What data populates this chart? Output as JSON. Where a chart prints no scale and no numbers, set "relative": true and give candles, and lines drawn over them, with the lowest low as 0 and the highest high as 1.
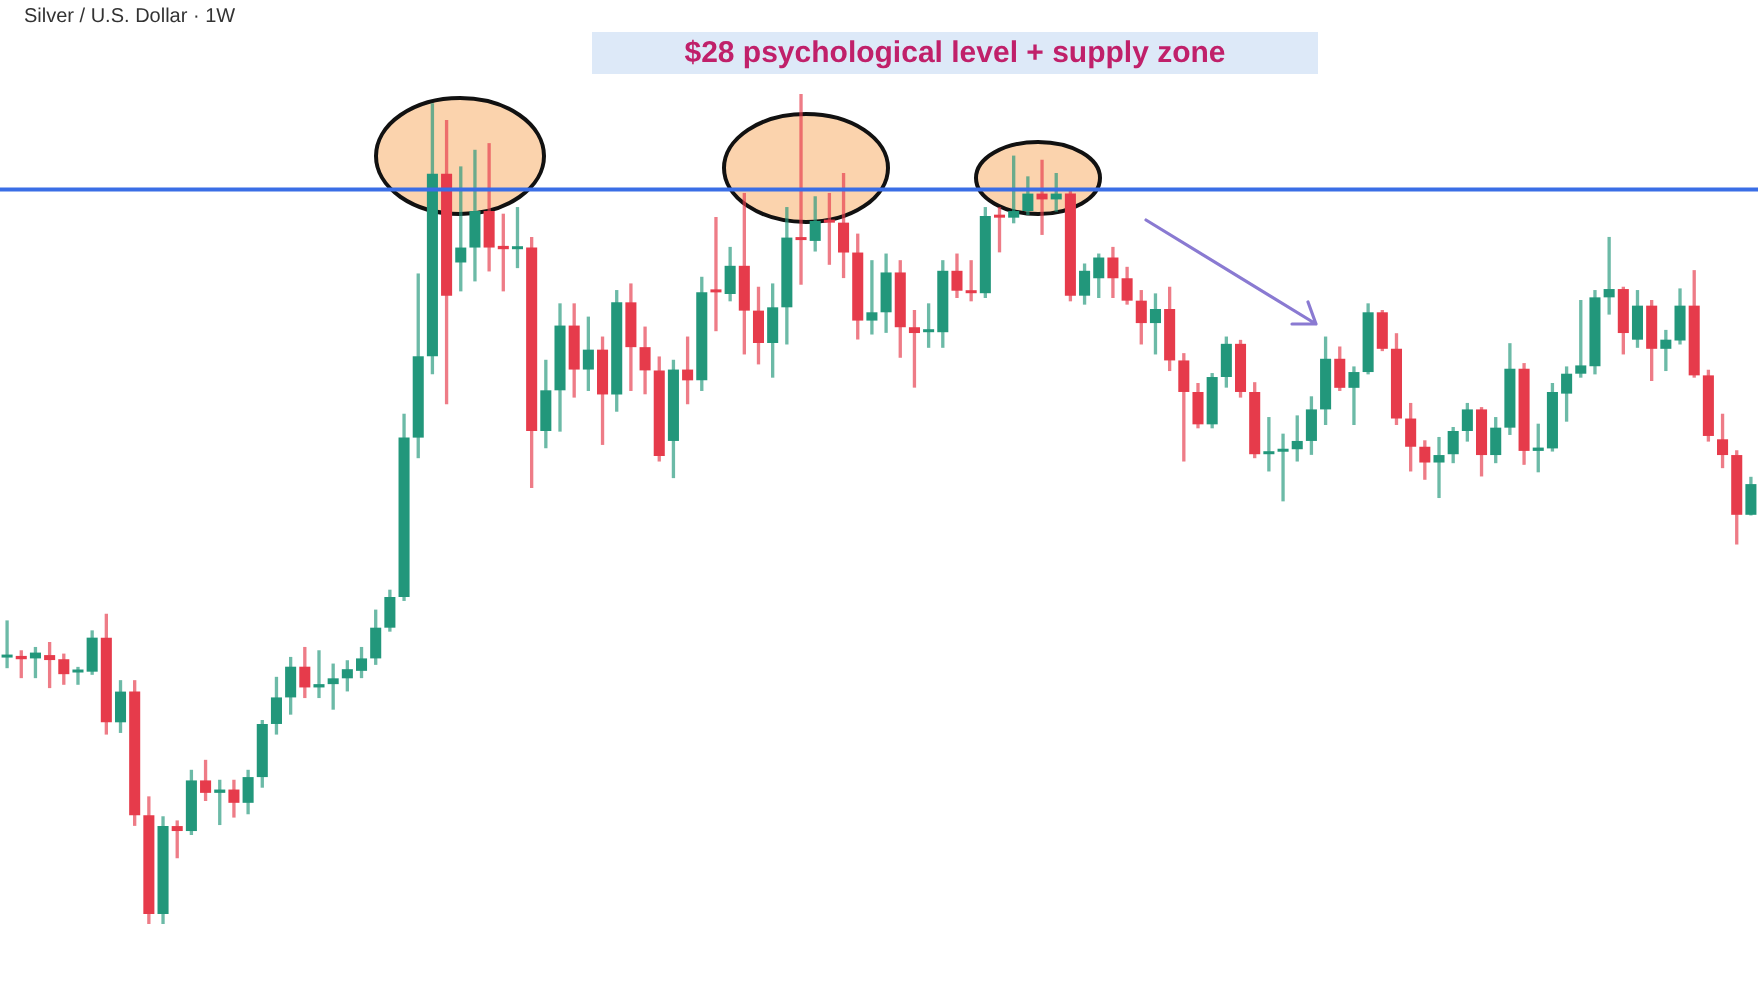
{
  "chart_data": {
    "type": "candlestick",
    "title": "$28 psychological level + supply zone",
    "subtitle": "Silver / U.S. Dollar · 1W",
    "relative": true,
    "categories": [
      null,
      null,
      null,
      null,
      null,
      null,
      null,
      null,
      null,
      null,
      null,
      null,
      null,
      null,
      null,
      null,
      null,
      null,
      null,
      null,
      null,
      null,
      null,
      null,
      null,
      null,
      null,
      null,
      null,
      null,
      null,
      null,
      null,
      null,
      null,
      null,
      null,
      null,
      null,
      null,
      null,
      null,
      null,
      null,
      null,
      null,
      null,
      null,
      null,
      null,
      null,
      null,
      null,
      null,
      null,
      null,
      null,
      null,
      null,
      null,
      null,
      null,
      null,
      null,
      null,
      null,
      null,
      null,
      null,
      null,
      null,
      null,
      null,
      null,
      null,
      null,
      null,
      null,
      null,
      null,
      null,
      null,
      null,
      null,
      null,
      null,
      null,
      null,
      null,
      null,
      null,
      null,
      null,
      null,
      null,
      null,
      null,
      null,
      null,
      null,
      null,
      null,
      null,
      null,
      null,
      null,
      null,
      null,
      null,
      null,
      null,
      null,
      null,
      null,
      null,
      null,
      null,
      null,
      null,
      null,
      null,
      null,
      null,
      null
    ],
    "ohlc": [
      [
        0.321,
        0.365,
        0.309,
        0.323
      ],
      [
        0.323,
        0.329,
        0.297,
        0.319
      ],
      [
        0.32,
        0.333,
        0.297,
        0.327
      ],
      [
        0.324,
        0.339,
        0.285,
        0.318
      ],
      [
        0.319,
        0.325,
        0.289,
        0.301
      ],
      [
        0.303,
        0.309,
        0.289,
        0.305
      ],
      [
        0.304,
        0.353,
        0.301,
        0.345
      ],
      [
        0.345,
        0.373,
        0.229,
        0.243
      ],
      [
        0.243,
        0.293,
        0.231,
        0.28
      ],
      [
        0.28,
        0.293,
        0.119,
        0.131
      ],
      [
        0.131,
        0.153,
        0,
        0.012
      ],
      [
        0.012,
        0.129,
        0,
        0.118
      ],
      [
        0.118,
        0.124,
        0.08,
        0.112
      ],
      [
        0.112,
        0.185,
        0.108,
        0.173
      ],
      [
        0.173,
        0.197,
        0.149,
        0.158
      ],
      [
        0.158,
        0.173,
        0.12,
        0.162
      ],
      [
        0.162,
        0.173,
        0.129,
        0.146
      ],
      [
        0.146,
        0.185,
        0.133,
        0.177
      ],
      [
        0.177,
        0.245,
        0.165,
        0.241
      ],
      [
        0.241,
        0.297,
        0.229,
        0.273
      ],
      [
        0.273,
        0.321,
        0.253,
        0.31
      ],
      [
        0.31,
        0.333,
        0.273,
        0.285
      ],
      [
        0.285,
        0.329,
        0.273,
        0.289
      ],
      [
        0.289,
        0.313,
        0.259,
        0.296
      ],
      [
        0.296,
        0.317,
        0.281,
        0.307
      ],
      [
        0.305,
        0.333,
        0.297,
        0.32
      ],
      [
        0.32,
        0.378,
        0.313,
        0.357
      ],
      [
        0.357,
        0.402,
        0.353,
        0.394
      ],
      [
        0.394,
        0.614,
        0.39,
        0.586
      ],
      [
        0.586,
        0.783,
        0.562,
        0.684
      ],
      [
        0.684,
        0.988,
        0.663,
        0.904
      ],
      [
        0.904,
        0.968,
        0.627,
        0.757
      ],
      [
        0.797,
        0.912,
        0.763,
        0.815
      ],
      [
        0.815,
        0.932,
        0.775,
        0.859
      ],
      [
        0.859,
        0.94,
        0.787,
        0.815
      ],
      [
        0.817,
        0.855,
        0.763,
        0.813
      ],
      [
        0.813,
        0.863,
        0.791,
        0.815
      ],
      [
        0.815,
        0.827,
        0.526,
        0.594
      ],
      [
        0.594,
        0.679,
        0.574,
        0.643
      ],
      [
        0.643,
        0.747,
        0.594,
        0.721
      ],
      [
        0.721,
        0.747,
        0.635,
        0.668
      ],
      [
        0.668,
        0.731,
        0.643,
        0.692
      ],
      [
        0.692,
        0.707,
        0.578,
        0.638
      ],
      [
        0.638,
        0.763,
        0.618,
        0.749
      ],
      [
        0.749,
        0.771,
        0.643,
        0.695
      ],
      [
        0.695,
        0.719,
        0.639,
        0.667
      ],
      [
        0.667,
        0.683,
        0.558,
        0.564
      ],
      [
        0.582,
        0.679,
        0.538,
        0.668
      ],
      [
        0.668,
        0.707,
        0.627,
        0.655
      ],
      [
        0.655,
        0.779,
        0.643,
        0.761
      ],
      [
        0.763,
        0.851,
        0.715,
        0.761
      ],
      [
        0.759,
        0.815,
        0.751,
        0.793
      ],
      [
        0.793,
        0.88,
        0.687,
        0.739
      ],
      [
        0.739,
        0.767,
        0.675,
        0.7
      ],
      [
        0.7,
        0.771,
        0.659,
        0.743
      ],
      [
        0.743,
        0.863,
        0.699,
        0.827
      ],
      [
        0.827,
        1,
        0.771,
        0.824
      ],
      [
        0.823,
        0.876,
        0.811,
        0.847
      ],
      [
        0.848,
        0.88,
        0.795,
        0.845
      ],
      [
        0.845,
        0.904,
        0.779,
        0.809
      ],
      [
        0.809,
        0.831,
        0.705,
        0.727
      ],
      [
        0.727,
        0.799,
        0.711,
        0.737
      ],
      [
        0.737,
        0.807,
        0.713,
        0.785
      ],
      [
        0.785,
        0.799,
        0.683,
        0.719
      ],
      [
        0.719,
        0.739,
        0.647,
        0.712
      ],
      [
        0.713,
        0.747,
        0.695,
        0.714
      ],
      [
        0.713,
        0.799,
        0.695,
        0.787
      ],
      [
        0.787,
        0.807,
        0.755,
        0.763
      ],
      [
        0.763,
        0.799,
        0.751,
        0.76
      ],
      [
        0.76,
        0.863,
        0.755,
        0.853
      ],
      [
        0.854,
        0.863,
        0.81,
        0.851
      ],
      [
        0.851,
        0.925,
        0.845,
        0.859
      ],
      [
        0.859,
        0.9,
        0.855,
        0.88
      ],
      [
        0.88,
        0.92,
        0.831,
        0.873
      ],
      [
        0.873,
        0.904,
        0.859,
        0.88
      ],
      [
        0.88,
        0.884,
        0.751,
        0.757
      ],
      [
        0.757,
        0.795,
        0.747,
        0.787
      ],
      [
        0.778,
        0.807,
        0.755,
        0.803
      ],
      [
        0.803,
        0.815,
        0.755,
        0.778
      ],
      [
        0.778,
        0.791,
        0.747,
        0.751
      ],
      [
        0.751,
        0.763,
        0.699,
        0.724
      ],
      [
        0.724,
        0.759,
        0.687,
        0.741
      ],
      [
        0.741,
        0.767,
        0.667,
        0.679
      ],
      [
        0.679,
        0.687,
        0.558,
        0.641
      ],
      [
        0.641,
        0.651,
        0.598,
        0.602
      ],
      [
        0.602,
        0.663,
        0.598,
        0.659
      ],
      [
        0.659,
        0.707,
        0.647,
        0.699
      ],
      [
        0.699,
        0.703,
        0.635,
        0.641
      ],
      [
        0.641,
        0.652,
        0.562,
        0.566
      ],
      [
        0.566,
        0.61,
        0.546,
        0.569
      ],
      [
        0.569,
        0.59,
        0.51,
        0.572
      ],
      [
        0.572,
        0.612,
        0.558,
        0.582
      ],
      [
        0.582,
        0.635,
        0.566,
        0.62
      ],
      [
        0.62,
        0.707,
        0.602,
        0.681
      ],
      [
        0.681,
        0.695,
        0.643,
        0.646
      ],
      [
        0.646,
        0.671,
        0.602,
        0.665
      ],
      [
        0.665,
        0.747,
        0.663,
        0.737
      ],
      [
        0.737,
        0.739,
        0.691,
        0.693
      ],
      [
        0.693,
        0.711,
        0.602,
        0.609
      ],
      [
        0.609,
        0.627,
        0.546,
        0.575
      ],
      [
        0.575,
        0.582,
        0.536,
        0.556
      ],
      [
        0.556,
        0.586,
        0.514,
        0.565
      ],
      [
        0.566,
        0.598,
        0.556,
        0.594
      ],
      [
        0.594,
        0.627,
        0.582,
        0.62
      ],
      [
        0.62,
        0.622,
        0.54,
        0.565
      ],
      [
        0.565,
        0.61,
        0.556,
        0.598
      ],
      [
        0.598,
        0.699,
        0.59,
        0.669
      ],
      [
        0.669,
        0.675,
        0.554,
        0.57
      ],
      [
        0.57,
        0.602,
        0.545,
        0.574
      ],
      [
        0.573,
        0.651,
        0.57,
        0.641
      ],
      [
        0.639,
        0.671,
        0.606,
        0.663
      ],
      [
        0.663,
        0.751,
        0.659,
        0.673
      ],
      [
        0.672,
        0.763,
        0.663,
        0.755
      ],
      [
        0.755,
        0.827,
        0.735,
        0.765
      ],
      [
        0.765,
        0.767,
        0.687,
        0.712
      ],
      [
        0.704,
        0.763,
        0.695,
        0.745
      ],
      [
        0.745,
        0.751,
        0.655,
        0.693
      ],
      [
        0.693,
        0.715,
        0.667,
        0.704
      ],
      [
        0.703,
        0.765,
        0.699,
        0.745
      ],
      [
        0.745,
        0.787,
        0.659,
        0.661
      ],
      [
        0.661,
        0.667,
        0.582,
        0.588
      ],
      [
        0.584,
        0.614,
        0.55,
        0.565
      ],
      [
        0.565,
        0.57,
        0.458,
        0.493
      ],
      [
        0.493,
        0.538,
        0.493,
        0.53
      ]
    ],
    "colors": [
      "#22977b",
      "#e63b4b",
      "#22977b",
      "#e63b4b",
      "#e63b4b",
      "#22977b",
      "#22977b",
      "#e63b4b",
      "#22977b",
      "#e63b4b",
      "#e63b4b",
      "#22977b",
      "#e63b4b",
      "#22977b",
      "#e63b4b",
      "#22977b",
      "#e63b4b",
      "#22977b",
      "#22977b",
      "#22977b",
      "#22977b",
      "#e63b4b",
      "#22977b",
      "#22977b",
      "#22977b",
      "#22977b",
      "#22977b",
      "#22977b",
      "#22977b",
      "#22977b",
      "#22977b",
      "#e63b4b",
      "#22977b",
      "#22977b",
      "#e63b4b",
      "#e63b4b",
      "#22977b",
      "#e63b4b",
      "#22977b",
      "#22977b",
      "#e63b4b",
      "#22977b",
      "#e63b4b",
      "#22977b",
      "#e63b4b",
      "#e63b4b",
      "#e63b4b",
      "#22977b",
      "#e63b4b",
      "#22977b",
      "#e63b4b",
      "#22977b",
      "#e63b4b",
      "#e63b4b",
      "#22977b",
      "#22977b",
      "#e63b4b",
      "#22977b",
      "#e63b4b",
      "#e63b4b",
      "#e63b4b",
      "#22977b",
      "#22977b",
      "#e63b4b",
      "#e63b4b",
      "#22977b",
      "#22977b",
      "#e63b4b",
      "#e63b4b",
      "#22977b",
      "#e63b4b",
      "#22977b",
      "#22977b",
      "#e63b4b",
      "#22977b",
      "#e63b4b",
      "#22977b",
      "#22977b",
      "#e63b4b",
      "#e63b4b",
      "#e63b4b",
      "#22977b",
      "#e63b4b",
      "#e63b4b",
      "#e63b4b",
      "#22977b",
      "#22977b",
      "#e63b4b",
      "#e63b4b",
      "#22977b",
      "#22977b",
      "#22977b",
      "#22977b",
      "#22977b",
      "#e63b4b",
      "#22977b",
      "#22977b",
      "#e63b4b",
      "#e63b4b",
      "#e63b4b",
      "#e63b4b",
      "#22977b",
      "#22977b",
      "#22977b",
      "#e63b4b",
      "#22977b",
      "#22977b",
      "#e63b4b",
      "#22977b",
      "#22977b",
      "#22977b",
      "#22977b",
      "#22977b",
      "#22977b",
      "#e63b4b",
      "#22977b",
      "#e63b4b",
      "#22977b",
      "#22977b",
      "#e63b4b",
      "#e63b4b",
      "#e63b4b",
      "#e63b4b",
      "#22977b"
    ],
    "ref_lines": [
      {
        "axis": "y",
        "value": 0.885,
        "color": "#3a6ee6"
      }
    ]
  }
}
